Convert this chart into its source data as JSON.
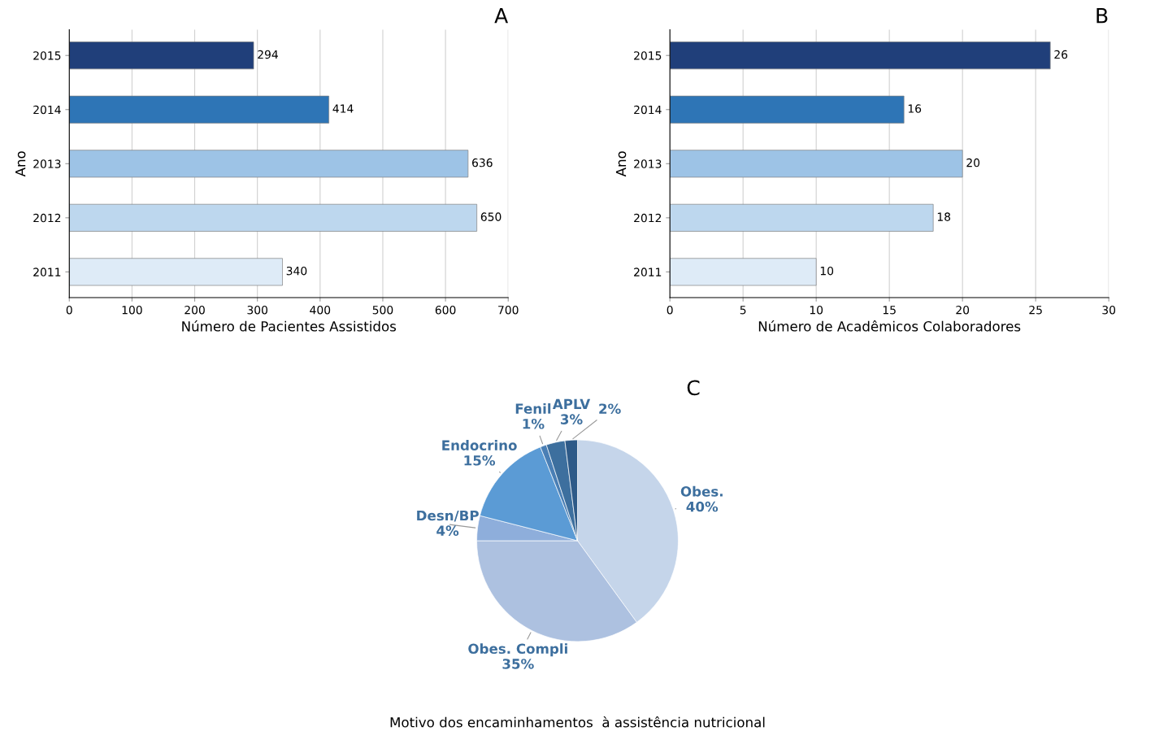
{
  "chart_data": [
    {
      "type": "bar",
      "orientation": "horizontal",
      "title": "A",
      "xlabel": "Número de Pacientes Assistidos",
      "ylabel": "Ano",
      "categories": [
        "2015",
        "2014",
        "2013",
        "2012",
        "2011"
      ],
      "values": [
        294,
        414,
        636,
        650,
        340
      ],
      "colors": [
        "#203f7a",
        "#2e75b6",
        "#9dc3e6",
        "#bdd7ee",
        "#deebf7"
      ],
      "xlim": [
        0,
        700
      ],
      "xticks": [
        0,
        100,
        200,
        300,
        400,
        500,
        600,
        700
      ],
      "grid": "x",
      "data_labels": true
    },
    {
      "type": "bar",
      "orientation": "horizontal",
      "title": "B",
      "xlabel": "Número de Acadêmicos Colaboradores",
      "ylabel": "Ano",
      "categories": [
        "2015",
        "2014",
        "2013",
        "2012",
        "2011"
      ],
      "values": [
        26,
        16,
        20,
        18,
        10
      ],
      "colors": [
        "#203f7a",
        "#2e75b6",
        "#9dc3e6",
        "#bdd7ee",
        "#deebf7"
      ],
      "xlim": [
        0,
        30
      ],
      "xticks": [
        0,
        5,
        10,
        15,
        20,
        25,
        30
      ],
      "grid": "x",
      "data_labels": true
    },
    {
      "type": "pie",
      "title": "C",
      "annotations": [
        "Motivo dos encaminhamentos  à assistência nutricional"
      ],
      "categories": [
        "Obes.",
        "Obes. Compli",
        "Desn/BP",
        "Endocrino",
        "Fenil",
        "APLV",
        null
      ],
      "values": [
        40,
        35,
        4,
        15,
        1,
        3,
        2
      ],
      "value_labels": [
        "40%",
        "35%",
        "4%",
        "15%",
        "1%",
        "3%",
        "2%"
      ],
      "colors": [
        "#c5d5ea",
        "#adc1e0",
        "#8eaedb",
        "#5b9bd5",
        "#4a7fb5",
        "#3d6f9e",
        "#2e5a88"
      ]
    }
  ]
}
